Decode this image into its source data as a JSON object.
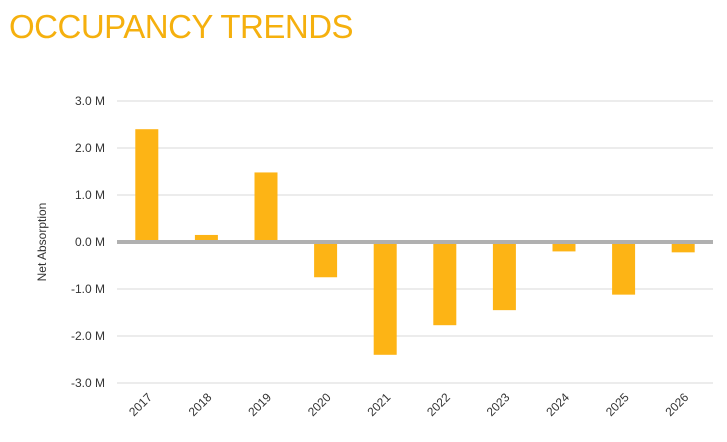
{
  "title": "OCCUPANCY TRENDS",
  "chart_data": {
    "type": "bar",
    "title": "OCCUPANCY TRENDS",
    "xlabel": "",
    "ylabel": "Net Absorption",
    "categories": [
      "2017",
      "2018",
      "2019",
      "2020",
      "2021",
      "2022",
      "2023",
      "2024",
      "2025",
      "2026"
    ],
    "values": [
      2.4,
      0.15,
      1.48,
      -0.75,
      -2.4,
      -1.77,
      -1.45,
      -0.2,
      -1.12,
      -0.22
    ],
    "ylim": [
      -3.0,
      3.0
    ],
    "yticks": [
      {
        "value": 3.0,
        "label": "3.0 M"
      },
      {
        "value": 2.0,
        "label": "2.0 M"
      },
      {
        "value": 1.0,
        "label": "1.0 M"
      },
      {
        "value": 0.0,
        "label": "0.0 M"
      },
      {
        "value": -1.0,
        "label": "-1.0 M"
      },
      {
        "value": -2.0,
        "label": "-2.0 M"
      },
      {
        "value": -3.0,
        "label": "-3.0 M"
      }
    ],
    "grid": true,
    "legend": "none",
    "bar_color": "#FDB415",
    "zero_line_color": "#B0B0B0",
    "title_color": "#F5B00E"
  }
}
